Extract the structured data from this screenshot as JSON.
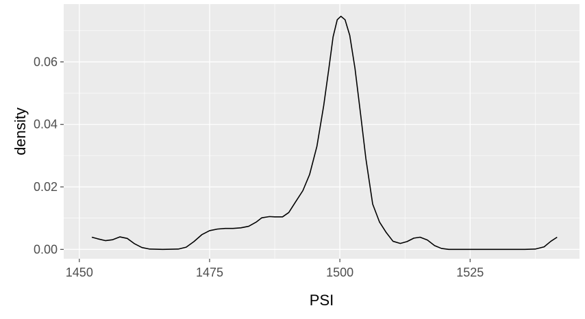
{
  "chart_data": {
    "type": "line",
    "title": "",
    "xlabel": "PSI",
    "ylabel": "density",
    "xlim": [
      1447,
      1546
    ],
    "ylim": [
      -0.003,
      0.0785
    ],
    "x_ticks": [
      1450,
      1475,
      1500,
      1525
    ],
    "x_tick_labels": [
      "1450",
      "1475",
      "1500",
      "1525"
    ],
    "y_ticks": [
      0.0,
      0.02,
      0.04,
      0.06
    ],
    "y_tick_labels": [
      "0.00",
      "0.02",
      "0.04",
      "0.06"
    ],
    "grid": true,
    "legend": "none",
    "colors": {
      "panel_bg": "#ebebeb",
      "grid": "#ffffff",
      "line": "#000000",
      "tick_text": "#4d4d4d"
    },
    "series": [
      {
        "x": [
          1452.4,
          1453.5,
          1455,
          1456.4,
          1457.8,
          1459.2,
          1460.6,
          1462,
          1463.5,
          1466,
          1469,
          1470.5,
          1472,
          1473.5,
          1475,
          1476.5,
          1478,
          1479.5,
          1481,
          1482.5,
          1484,
          1485,
          1486.5,
          1487.5,
          1489,
          1490.2,
          1491.5,
          1492.9,
          1494.2,
          1495.6,
          1496.9,
          1497.9,
          1498.7,
          1499.5,
          1500.2,
          1501,
          1501.9,
          1502.9,
          1504,
          1505,
          1506.3,
          1507.6,
          1508.9,
          1510.2,
          1511.6,
          1512.9,
          1514.2,
          1515.4,
          1516.8,
          1518.2,
          1519.5,
          1520.9,
          1523.5,
          1526.5,
          1529.5,
          1532.5,
          1535.5,
          1537.5,
          1539.2,
          1540.5,
          1541.7
        ],
        "y": [
          0.0039,
          0.0034,
          0.0028,
          0.0031,
          0.004,
          0.0035,
          0.0018,
          0.0006,
          0.0001,
          0.0,
          0.0001,
          0.0007,
          0.0025,
          0.0047,
          0.006,
          0.0065,
          0.0067,
          0.0067,
          0.0069,
          0.0074,
          0.0088,
          0.0101,
          0.0105,
          0.0104,
          0.0104,
          0.0118,
          0.0152,
          0.0188,
          0.024,
          0.033,
          0.046,
          0.058,
          0.068,
          0.0735,
          0.0746,
          0.0735,
          0.0685,
          0.058,
          0.043,
          0.029,
          0.0145,
          0.0088,
          0.0054,
          0.0026,
          0.0019,
          0.0025,
          0.0036,
          0.0039,
          0.003,
          0.0012,
          0.0003,
          0.0,
          0.0,
          0.0,
          0.0,
          0.0,
          0.0,
          0.0001,
          0.0008,
          0.0026,
          0.0039
        ]
      }
    ]
  }
}
